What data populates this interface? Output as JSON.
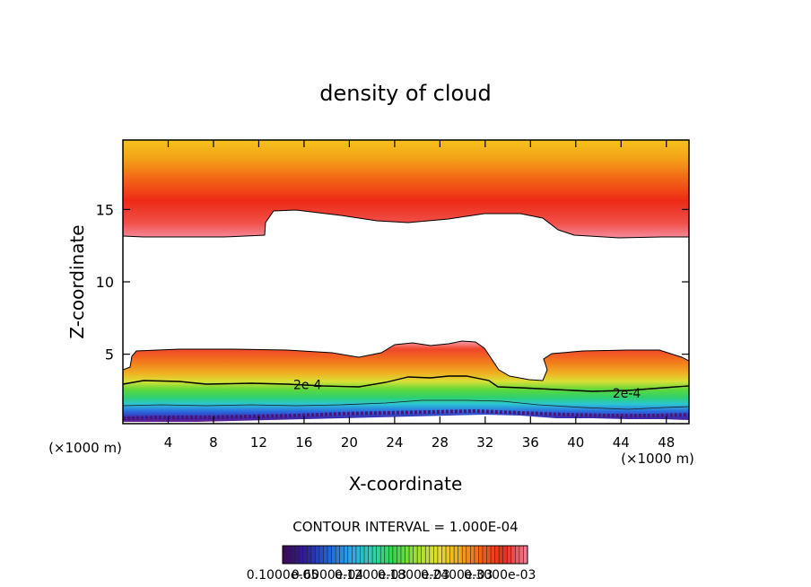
{
  "chart_data": {
    "type": "heatmap",
    "title": "density of cloud",
    "xlabel": "X-coordinate",
    "ylabel": "Z-coordinate",
    "x_unit": "(×1000 m)",
    "x_unit_right": "(×1000 m)",
    "xlim": [
      0,
      50
    ],
    "ylim": [
      0.2,
      19.8
    ],
    "x_ticks": [
      4,
      8,
      12,
      16,
      20,
      24,
      28,
      32,
      36,
      40,
      44,
      48
    ],
    "y_ticks": [
      5,
      10,
      15
    ],
    "contour_labels": [
      {
        "text": "2e-4",
        "x": 16.3,
        "z": 2.9
      },
      {
        "text": "2e-4",
        "x": 44.5,
        "z": 2.3
      }
    ],
    "contour_interval_text": "CONTOUR INTERVAL = 1.000E-04",
    "colorbar_labels": [
      "0.1000e-05",
      "0.6000e-04",
      "0.1200e-03",
      "0.1800e-03",
      "0.2400e-03",
      "0.3000e-03"
    ],
    "colorbar_colors": [
      "#3b0a5a",
      "#2d1fa0",
      "#1f64d8",
      "#2aa6e8",
      "#2fd0b0",
      "#35d84a",
      "#9be034",
      "#e4e030",
      "#f0a81e",
      "#f06018",
      "#ec2a18",
      "#f47890"
    ]
  },
  "palette": {
    "upper_top": "#f6c21c",
    "upper_mid": "#f38a14",
    "upper_core": "#ee2a16",
    "upper_edge": "#f68a9c",
    "low_pink": "#f49aa8",
    "low_red": "#ef3a1a",
    "low_orange": "#f49a20",
    "low_yellow": "#dfe036",
    "low_green": "#3ed84a",
    "low_cyan": "#2bc6d4",
    "low_blue": "#1f5fd6",
    "low_purple": "#5b1a8a",
    "line": "#000000"
  }
}
